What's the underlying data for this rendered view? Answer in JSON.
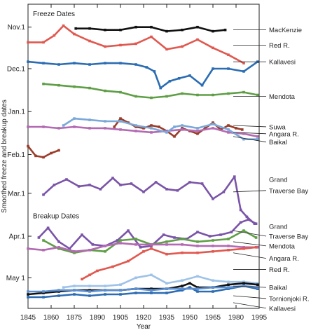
{
  "chart_data": {
    "type": "line",
    "xlabel": "Year",
    "ylabel": "Smoothed freeze and breakup dates",
    "xlim": [
      1845,
      1995
    ],
    "x_ticks": [
      1845,
      1860,
      1875,
      1890,
      1905,
      1920,
      1935,
      1950,
      1965,
      1980,
      1995
    ],
    "ylim_days_from_oct1": [
      19,
      224
    ],
    "y_ticks": [
      {
        "label": "Nov.1",
        "day": 31
      },
      {
        "label": "Dec.1",
        "day": 61
      },
      {
        "label": "Jan.1",
        "day": 92
      },
      {
        "label": "Feb.1",
        "day": 123
      },
      {
        "label": "Mar.1",
        "day": 151
      },
      {
        "label": "Apr.1",
        "day": 182
      },
      {
        "label": "May 1",
        "day": 212
      }
    ],
    "grid": false,
    "sections": [
      {
        "label": "Freeze Dates",
        "day": 23
      },
      {
        "label": "Breakup Dates",
        "day": 169
      }
    ],
    "series": [
      {
        "name": "MacKenzie",
        "group": "freeze",
        "color": "#111111",
        "x": [
          1876,
          1885,
          1895,
          1905,
          1915,
          1925,
          1935,
          1945,
          1955,
          1965,
          1973
        ],
        "y": [
          32,
          32,
          33,
          33,
          31,
          31,
          34,
          33,
          31,
          34,
          33
        ]
      },
      {
        "name": "Red R.",
        "group": "freeze",
        "color": "#e0584f",
        "x": [
          1845,
          1855,
          1862,
          1868,
          1875,
          1885,
          1895,
          1905,
          1915,
          1925,
          1935,
          1945,
          1955,
          1965,
          1975,
          1985
        ],
        "y": [
          42,
          42,
          37,
          30,
          36,
          41,
          45,
          44,
          43,
          38,
          47,
          45,
          40,
          46,
          51,
          57
        ]
      },
      {
        "name": "Kallavesi",
        "group": "freeze",
        "color": "#2b6cb3",
        "x": [
          1845,
          1855,
          1865,
          1875,
          1885,
          1895,
          1905,
          1915,
          1922,
          1927,
          1931,
          1937,
          1943,
          1950,
          1958,
          1965,
          1975,
          1985,
          1994
        ],
        "y": [
          56,
          57,
          58,
          57,
          58,
          57,
          57,
          58,
          60,
          63,
          75,
          70,
          68,
          66,
          73,
          61,
          61,
          63,
          56
        ]
      },
      {
        "name": "Mendota",
        "group": "freeze",
        "color": "#5e9e45",
        "x": [
          1855,
          1865,
          1875,
          1885,
          1895,
          1905,
          1915,
          1925,
          1935,
          1945,
          1955,
          1965,
          1975,
          1985,
          1994
        ],
        "y": [
          72,
          73,
          74,
          75,
          77,
          78,
          81,
          82,
          81,
          79,
          80,
          80,
          79,
          78,
          80
        ]
      },
      {
        "name": "Suwa",
        "group": "freeze",
        "color": "#9a3d2a",
        "x": [
          1901,
          1905,
          1910,
          1915,
          1920,
          1925,
          1930,
          1935,
          1940,
          1945,
          1950,
          1955,
          1960,
          1965,
          1970,
          1975,
          1980,
          1984
        ],
        "y": [
          103,
          97,
          100,
          103,
          104,
          102,
          103,
          106,
          110,
          104,
          106,
          108,
          104,
          100,
          105,
          102,
          104,
          105
        ]
      },
      {
        "name": "Angara R.",
        "group": "freeze",
        "color": "#b36ab3",
        "x": [
          1845,
          1855,
          1865,
          1875,
          1885,
          1895,
          1905,
          1915,
          1925,
          1935,
          1945,
          1955,
          1965,
          1975,
          1985,
          1994
        ],
        "y": [
          103,
          103,
          104,
          103,
          104,
          104,
          105,
          106,
          107,
          106,
          105,
          106,
          104,
          107,
          108,
          110
        ]
      },
      {
        "name": "Baikal",
        "group": "freeze",
        "color": "#7ba8d8",
        "x": [
          1868,
          1875,
          1885,
          1895,
          1905,
          1915,
          1925,
          1935,
          1940,
          1945,
          1955,
          1965,
          1975,
          1985,
          1994
        ],
        "y": [
          102,
          97,
          98,
          99,
          99,
          102,
          104,
          107,
          103,
          102,
          104,
          101,
          105,
          112,
          112
        ]
      },
      {
        "name": "Suwa",
        "group": "freeze-early",
        "color": "#9a3d2a",
        "x": [
          1845,
          1850,
          1855,
          1860,
          1865
        ],
        "y": [
          117,
          124,
          125,
          122,
          120
        ]
      },
      {
        "name": "Grand Traverse Bay",
        "group": "freeze",
        "color": "#7a54a8",
        "x": [
          1855,
          1862,
          1870,
          1878,
          1885,
          1892,
          1900,
          1905,
          1912,
          1920,
          1928,
          1935,
          1942,
          1950,
          1958,
          1965,
          1972,
          1979,
          1983,
          1987,
          1992
        ],
        "y": [
          152,
          145,
          141,
          146,
          145,
          148,
          140,
          145,
          144,
          150,
          143,
          148,
          149,
          143,
          144,
          155,
          150,
          139,
          163,
          168,
          173
        ]
      },
      {
        "name": "Grand Traverse Bay",
        "group": "breakup",
        "color": "#7a54a8",
        "x": [
          1852,
          1858,
          1865,
          1872,
          1880,
          1887,
          1895,
          1903,
          1910,
          1918,
          1925,
          1933,
          1940,
          1948,
          1955,
          1963,
          1970,
          1977,
          1983,
          1988,
          1993
        ],
        "y": [
          183,
          176,
          186,
          191,
          181,
          188,
          189,
          185,
          178,
          190,
          189,
          181,
          183,
          184,
          179,
          182,
          181,
          179,
          172,
          170,
          173
        ]
      },
      {
        "name": "Mendota",
        "group": "breakup",
        "color": "#5e9e45",
        "x": [
          1855,
          1865,
          1875,
          1885,
          1895,
          1905,
          1915,
          1925,
          1935,
          1945,
          1955,
          1965,
          1975,
          1985,
          1993
        ],
        "y": [
          185,
          191,
          194,
          192,
          193,
          185,
          184,
          188,
          186,
          184,
          186,
          185,
          184,
          178,
          183
        ]
      },
      {
        "name": "Angara R.",
        "group": "breakup",
        "color": "#b36ab3",
        "x": [
          1845,
          1855,
          1865,
          1875,
          1885,
          1895,
          1905,
          1915,
          1925,
          1935,
          1945,
          1955,
          1965,
          1975,
          1985,
          1994
        ],
        "y": [
          191,
          192,
          190,
          193,
          192,
          189,
          187,
          188,
          188,
          188,
          188,
          189,
          189,
          189,
          190,
          190
        ]
      },
      {
        "name": "Red R.",
        "group": "breakup",
        "color": "#e0584f",
        "x": [
          1880,
          1885,
          1890,
          1900,
          1910,
          1920,
          1925,
          1935,
          1945,
          1955,
          1965,
          1975,
          1985,
          1993
        ],
        "y": [
          213,
          210,
          207,
          204,
          200,
          193,
          191,
          195,
          194,
          194,
          193,
          192,
          191,
          190
        ]
      },
      {
        "name": "Baikal",
        "group": "breakup",
        "color": "#9fc3e8",
        "x": [
          1868,
          1875,
          1885,
          1895,
          1905,
          1915,
          1925,
          1935,
          1945,
          1955,
          1965,
          1975,
          1985,
          1994
        ],
        "y": [
          219,
          218,
          218,
          218,
          217,
          212,
          210,
          216,
          214,
          211,
          214,
          215,
          215,
          216
        ]
      },
      {
        "name": "Tornionjoki R.",
        "group": "breakup",
        "color": "#111111",
        "x": [
          1845,
          1855,
          1865,
          1875,
          1885,
          1895,
          1905,
          1915,
          1925,
          1935,
          1945,
          1950,
          1955,
          1965,
          1975,
          1985,
          1994
        ],
        "y": [
          224,
          223,
          222,
          221,
          221,
          221,
          221,
          220,
          220,
          220,
          218,
          216,
          219,
          219,
          217,
          216,
          217
        ]
      },
      {
        "name": "Kallavesi",
        "group": "breakup",
        "color": "#2b6cb3",
        "x": [
          1845,
          1855,
          1865,
          1875,
          1885,
          1895,
          1905,
          1915,
          1925,
          1935,
          1945,
          1950,
          1955,
          1965,
          1975,
          1985,
          1994
        ],
        "y": [
          226,
          226,
          225,
          224,
          225,
          224,
          224,
          223,
          223,
          223,
          221,
          219,
          222,
          222,
          220,
          218,
          220
        ]
      },
      {
        "name": "Kallavesi",
        "group": "breakup-light",
        "color": "#5b8fd0",
        "x": [
          1845,
          1855,
          1865,
          1875,
          1885,
          1895,
          1905,
          1915,
          1925,
          1935,
          1945,
          1955,
          1965,
          1975,
          1985,
          1994
        ],
        "y": [
          222,
          222,
          221,
          221,
          222,
          221,
          221,
          220,
          221,
          220,
          220,
          220,
          219,
          219,
          218,
          219
        ]
      }
    ],
    "labels": [
      {
        "text": "MacKenzie",
        "day": 33
      },
      {
        "text": "Red R.",
        "day": 44
      },
      {
        "text": "Kallavesi",
        "day": 56
      },
      {
        "text": "Mendota",
        "day": 81
      },
      {
        "text": "Suwa",
        "day": 103
      },
      {
        "text": "Angara R.",
        "day": 108
      },
      {
        "text": "Baikal",
        "day": 114
      },
      {
        "text": "Grand",
        "day": 141
      },
      {
        "text": "Traverse Bay",
        "day": 149
      },
      {
        "text": "Grand",
        "day": 175
      },
      {
        "text": "Traverse Bay",
        "day": 182
      },
      {
        "text": "Mendota",
        "day": 189
      },
      {
        "text": "Angara R.",
        "day": 198
      },
      {
        "text": "Red R.",
        "day": 206
      },
      {
        "text": "Baikal",
        "day": 219
      },
      {
        "text": "Tornionjoki R.",
        "day": 227
      },
      {
        "text": "Kallavesi",
        "day": 234
      }
    ]
  }
}
